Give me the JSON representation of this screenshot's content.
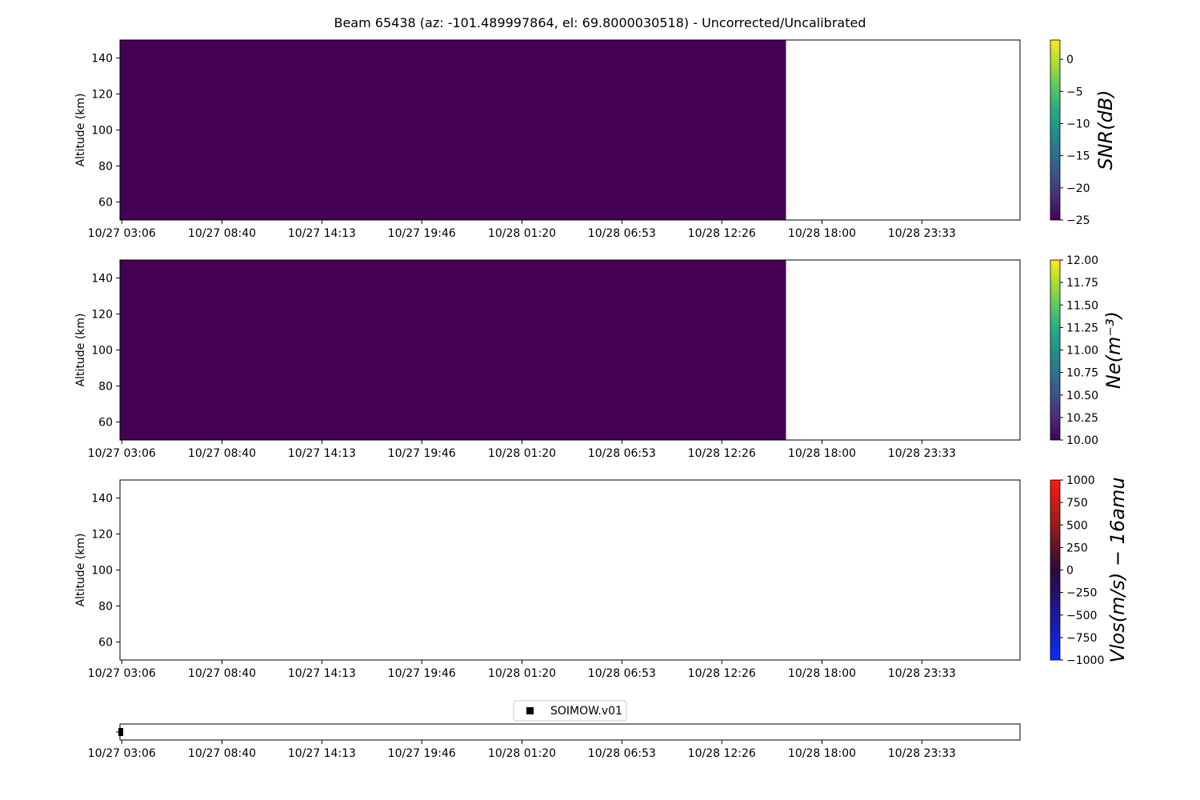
{
  "chart_data": {
    "title": "Beam 65438 (az: -101.489997864, el: 69.8000030518) - Uncorrected/Uncalibrated",
    "x_tick_labels": [
      "10/27 03:06",
      "10/27 08:40",
      "10/27 14:13",
      "10/27 19:46",
      "10/28 01:20",
      "10/28 06:53",
      "10/28 12:26",
      "10/28 18:00",
      "10/28 23:33"
    ],
    "x_start": "10/27 03:00",
    "x_end": "10/29 05:00",
    "panels": [
      {
        "type": "heatmap",
        "ylabel": "Altitude (km)",
        "ylim": [
          50,
          150
        ],
        "yticks": [
          60,
          80,
          100,
          120,
          140
        ],
        "data_x_range": [
          "10/27 03:00",
          "10/28 16:00"
        ],
        "fill_color": "#440154",
        "colorbar": {
          "label": "SNR(dB)",
          "range": [
            -25,
            3
          ],
          "ticks": [
            0,
            -5,
            -10,
            -15,
            -20,
            -25
          ],
          "tick_labels": [
            "0",
            "−5",
            "−10",
            "−15",
            "−20",
            "−25"
          ],
          "colormap": "viridis"
        }
      },
      {
        "type": "heatmap",
        "ylabel": "Altitude (km)",
        "ylim": [
          50,
          150
        ],
        "yticks": [
          60,
          80,
          100,
          120,
          140
        ],
        "data_x_range": [
          "10/27 03:00",
          "10/28 16:00"
        ],
        "fill_color": "#440154",
        "colorbar": {
          "label": "Ne(m⁻³)",
          "range": [
            10,
            12
          ],
          "ticks": [
            12,
            11.75,
            11.5,
            11.25,
            11,
            10.75,
            10.5,
            10.25,
            10
          ],
          "tick_labels": [
            "12.00",
            "11.75",
            "11.50",
            "11.25",
            "11.00",
            "10.75",
            "10.50",
            "10.25",
            "10.00"
          ],
          "colormap": "viridis"
        }
      },
      {
        "type": "heatmap",
        "ylabel": "Altitude (km)",
        "ylim": [
          50,
          150
        ],
        "yticks": [
          60,
          80,
          100,
          120,
          140
        ],
        "data_x_range": null,
        "fill_color": null,
        "colorbar": {
          "label": "Vlos(m/s) − 16amu",
          "range": [
            -1000,
            1000
          ],
          "ticks": [
            1000,
            750,
            500,
            250,
            0,
            -250,
            -500,
            -750,
            -1000
          ],
          "tick_labels": [
            "1000",
            "750",
            "500",
            "250",
            "0",
            "−250",
            "−500",
            "−750",
            "−1000"
          ],
          "colormap": "bwr-dark"
        }
      }
    ],
    "model_strip": {
      "legend": "SOIMOW.v01",
      "points": [
        "10/27 03:00"
      ],
      "marker_color": "#000000"
    }
  }
}
